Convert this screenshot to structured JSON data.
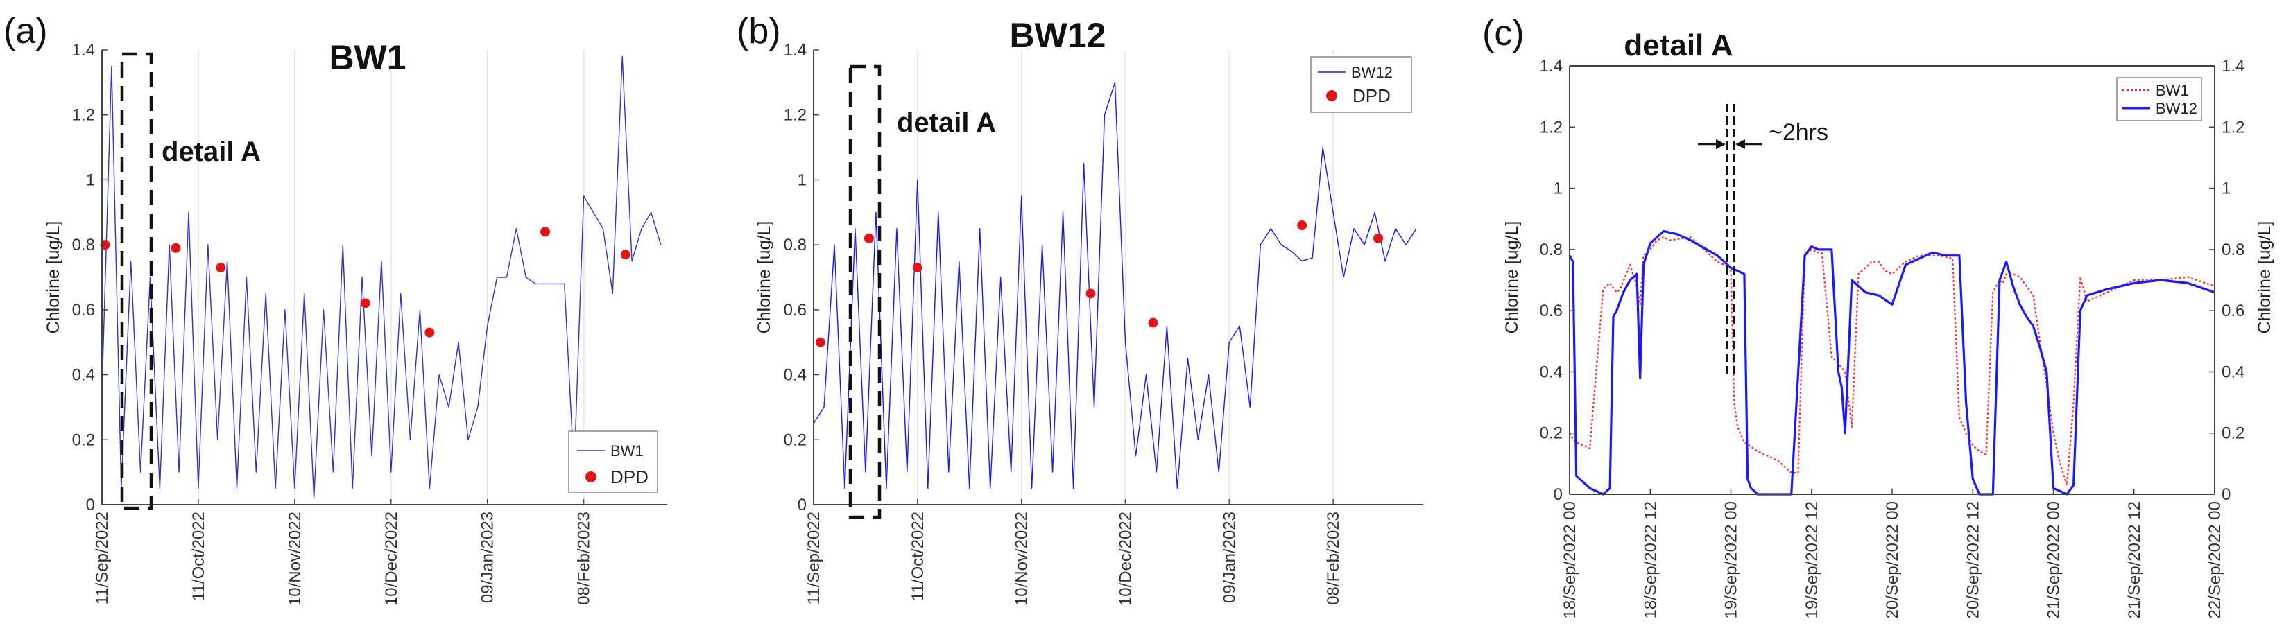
{
  "colors": {
    "bw1_blue": "#3333cc",
    "bw12_blue": "#1a1aff",
    "dpd_red": "#e01515",
    "bw1_dotted_red": "#ff2a2a",
    "axis": "#444444",
    "grid": "#e6e6e6"
  },
  "panels": {
    "a": {
      "label": "(a)",
      "title": "BW1",
      "ylabel": "Chlorine [ug/L]",
      "detail": "detail A",
      "legend": [
        "BW1",
        "DPD"
      ]
    },
    "b": {
      "label": "(b)",
      "title": "BW12",
      "ylabel": "Chlorine [ug/L]",
      "detail": "detail A",
      "legend": [
        "BW12",
        "DPD"
      ]
    },
    "c": {
      "label": "(c)",
      "title": "detail A",
      "ylabel_left": "Chlorine [ug/L]",
      "ylabel_right": "Chlorine [ug/L]",
      "annotation": "~2hrs",
      "legend": [
        "BW1",
        "BW12"
      ]
    }
  },
  "chart_data": [
    {
      "type": "line",
      "title": "BW1",
      "xlabel": "",
      "ylabel": "Chlorine [ug/L]",
      "xlim": [
        "2022-09-11",
        "2023-03-06"
      ],
      "ylim": [
        0,
        1.4
      ],
      "yticks": [
        "0",
        "0.2",
        "0.4",
        "0.6",
        "0.8",
        "1",
        "1.2",
        "1.4"
      ],
      "xticks": [
        "11/Sep/2022",
        "11/Oct/2022",
        "10/Nov/2022",
        "10/Dec/2022",
        "09/Jan/2023",
        "08/Feb/2023"
      ],
      "grid": "vertical",
      "legend_position": "bottom-right",
      "series": [
        {
          "name": "BW1",
          "style": "line",
          "x": [
            "2022-09-11",
            "2022-09-14",
            "2022-09-17",
            "2022-09-20",
            "2022-09-23",
            "2022-09-26",
            "2022-09-29",
            "2022-10-02",
            "2022-10-05",
            "2022-10-08",
            "2022-10-11",
            "2022-10-14",
            "2022-10-17",
            "2022-10-20",
            "2022-10-23",
            "2022-10-26",
            "2022-10-29",
            "2022-11-01",
            "2022-11-04",
            "2022-11-07",
            "2022-11-10",
            "2022-11-13",
            "2022-11-16",
            "2022-11-19",
            "2022-11-22",
            "2022-11-25",
            "2022-11-28",
            "2022-12-01",
            "2022-12-04",
            "2022-12-07",
            "2022-12-10",
            "2022-12-13",
            "2022-12-16",
            "2022-12-19",
            "2022-12-22",
            "2022-12-25",
            "2022-12-28",
            "2022-12-31",
            "2023-01-03",
            "2023-01-06",
            "2023-01-09",
            "2023-01-12",
            "2023-01-15",
            "2023-01-18",
            "2023-01-21",
            "2023-01-24",
            "2023-01-27",
            "2023-01-30",
            "2023-02-02",
            "2023-02-05",
            "2023-02-08",
            "2023-02-11",
            "2023-02-14",
            "2023-02-17",
            "2023-02-20",
            "2023-02-23",
            "2023-02-26",
            "2023-03-01",
            "2023-03-04"
          ],
          "values": [
            0.35,
            1.35,
            0.05,
            0.75,
            0.1,
            0.7,
            0.05,
            0.8,
            0.1,
            0.9,
            0.05,
            0.8,
            0.2,
            0.75,
            0.05,
            0.7,
            0.1,
            0.65,
            0.05,
            0.6,
            0.05,
            0.65,
            0.02,
            0.6,
            0.1,
            0.8,
            0.05,
            0.7,
            0.15,
            0.75,
            0.1,
            0.65,
            0.2,
            0.6,
            0.05,
            0.4,
            0.3,
            0.5,
            0.2,
            0.3,
            0.55,
            0.7,
            0.7,
            0.85,
            0.7,
            0.68,
            0.68,
            0.68,
            0.68,
            0.1,
            0.95,
            0.9,
            0.85,
            0.65,
            1.38,
            0.75,
            0.85,
            0.9,
            0.8
          ]
        },
        {
          "name": "DPD",
          "style": "markers",
          "x": [
            "2022-09-12",
            "2022-10-04",
            "2022-10-18",
            "2022-12-02",
            "2022-12-22",
            "2023-01-27",
            "2023-02-21"
          ],
          "values": [
            0.8,
            0.79,
            0.73,
            0.62,
            0.53,
            0.84,
            0.77
          ]
        }
      ],
      "annotations": [
        "detail A"
      ]
    },
    {
      "type": "line",
      "title": "BW12",
      "xlabel": "",
      "ylabel": "Chlorine [ug/L]",
      "xlim": [
        "2022-09-11",
        "2023-03-06"
      ],
      "ylim": [
        0,
        1.4
      ],
      "yticks": [
        "0",
        "0.2",
        "0.4",
        "0.6",
        "0.8",
        "1",
        "1.2",
        "1.4"
      ],
      "xticks": [
        "11/Sep/2022",
        "11/Oct/2022",
        "10/Nov/2022",
        "10/Dec/2022",
        "09/Jan/2023",
        "08/Feb/2023"
      ],
      "grid": "vertical",
      "legend_position": "top-right",
      "series": [
        {
          "name": "BW12",
          "style": "line",
          "x": [
            "2022-09-11",
            "2022-09-14",
            "2022-09-17",
            "2022-09-20",
            "2022-09-23",
            "2022-09-26",
            "2022-09-29",
            "2022-10-02",
            "2022-10-05",
            "2022-10-08",
            "2022-10-11",
            "2022-10-14",
            "2022-10-17",
            "2022-10-20",
            "2022-10-23",
            "2022-10-26",
            "2022-10-29",
            "2022-11-01",
            "2022-11-04",
            "2022-11-07",
            "2022-11-10",
            "2022-11-13",
            "2022-11-16",
            "2022-11-19",
            "2022-11-22",
            "2022-11-25",
            "2022-11-28",
            "2022-12-01",
            "2022-12-04",
            "2022-12-07",
            "2022-12-10",
            "2022-12-13",
            "2022-12-16",
            "2022-12-19",
            "2022-12-22",
            "2022-12-25",
            "2022-12-28",
            "2022-12-31",
            "2023-01-03",
            "2023-01-06",
            "2023-01-09",
            "2023-01-12",
            "2023-01-15",
            "2023-01-18",
            "2023-01-21",
            "2023-01-24",
            "2023-01-27",
            "2023-01-30",
            "2023-02-02",
            "2023-02-05",
            "2023-02-08",
            "2023-02-11",
            "2023-02-14",
            "2023-02-17",
            "2023-02-20",
            "2023-02-23",
            "2023-02-26",
            "2023-03-01",
            "2023-03-04"
          ],
          "values": [
            0.25,
            0.3,
            0.8,
            0.05,
            0.85,
            0.1,
            0.9,
            0.05,
            0.85,
            0.1,
            1.0,
            0.05,
            0.9,
            0.1,
            0.75,
            0.05,
            0.85,
            0.05,
            0.7,
            0.1,
            0.95,
            0.05,
            0.8,
            0.1,
            0.9,
            0.05,
            1.05,
            0.3,
            1.2,
            1.3,
            0.5,
            0.15,
            0.4,
            0.1,
            0.55,
            0.05,
            0.45,
            0.2,
            0.4,
            0.1,
            0.5,
            0.55,
            0.3,
            0.8,
            0.85,
            0.8,
            0.78,
            0.75,
            0.76,
            1.1,
            0.9,
            0.7,
            0.85,
            0.8,
            0.9,
            0.75,
            0.85,
            0.8,
            0.85
          ]
        },
        {
          "name": "DPD",
          "style": "markers",
          "x": [
            "2022-09-13",
            "2022-09-27",
            "2022-10-11",
            "2022-11-30",
            "2022-12-18",
            "2023-01-30",
            "2023-02-21"
          ],
          "values": [
            0.5,
            0.82,
            0.73,
            0.65,
            0.56,
            0.86,
            0.82
          ]
        }
      ],
      "annotations": [
        "detail A"
      ]
    },
    {
      "type": "line",
      "title": "detail A",
      "xlabel": "",
      "ylabel": "Chlorine [ug/L]",
      "xlim": [
        0,
        96
      ],
      "ylim": [
        0,
        1.4
      ],
      "yticks": [
        "0",
        "0.2",
        "0.4",
        "0.6",
        "0.8",
        "1",
        "1.2",
        "1.4"
      ],
      "xticks": [
        "18/Sep/2022 00",
        "18/Sep/2022 12",
        "19/Sep/2022 00",
        "19/Sep/2022 12",
        "20/Sep/2022 00",
        "20/Sep/2022 12",
        "21/Sep/2022 00",
        "21/Sep/2022 12",
        "22/Sep/2022 00"
      ],
      "x_unit": "hours after 18/Sep/2022 00",
      "legend_position": "top-right",
      "series": [
        {
          "name": "BW1",
          "style": "dotted",
          "x": [
            0,
            0.5,
            1,
            3,
            5,
            6,
            7,
            7.5,
            9,
            10,
            10.5,
            11,
            12,
            13,
            14,
            15,
            18,
            22,
            24,
            24.5,
            25,
            26,
            28,
            31,
            33,
            34,
            35,
            36,
            37,
            37.5,
            39,
            41,
            42,
            43,
            44,
            45,
            46,
            47,
            48,
            49,
            50,
            51,
            52,
            53,
            55,
            57,
            58,
            59,
            60,
            61,
            62,
            63,
            64,
            64.5,
            65,
            66,
            67,
            68,
            69,
            70,
            71,
            72,
            73,
            74,
            75,
            76,
            77,
            80,
            84,
            88,
            92,
            96
          ],
          "values": [
            0.2,
            0.18,
            0.17,
            0.15,
            0.67,
            0.69,
            0.66,
            0.67,
            0.75,
            0.68,
            0.62,
            0.78,
            0.8,
            0.83,
            0.84,
            0.83,
            0.84,
            0.76,
            0.74,
            0.3,
            0.22,
            0.17,
            0.14,
            0.11,
            0.07,
            0.07,
            0.78,
            0.8,
            0.79,
            0.8,
            0.45,
            0.4,
            0.22,
            0.72,
            0.74,
            0.76,
            0.76,
            0.73,
            0.72,
            0.74,
            0.76,
            0.77,
            0.78,
            0.78,
            0.78,
            0.77,
            0.25,
            0.2,
            0.16,
            0.14,
            0.13,
            0.66,
            0.7,
            0.69,
            0.72,
            0.72,
            0.71,
            0.68,
            0.65,
            0.5,
            0.36,
            0.2,
            0.1,
            0.03,
            0.3,
            0.71,
            0.63,
            0.66,
            0.7,
            0.7,
            0.71,
            0.68
          ]
        },
        {
          "name": "BW12",
          "style": "solid",
          "x": [
            0,
            0.5,
            1,
            3,
            5,
            6,
            6.5,
            7,
            8,
            9,
            10,
            10.5,
            11,
            12,
            14,
            16,
            18,
            22,
            24,
            26,
            26.5,
            27,
            28,
            30,
            32,
            33,
            35,
            36,
            37,
            39,
            40,
            40.5,
            41,
            42,
            43,
            44,
            46,
            48,
            50,
            52,
            54,
            56,
            58,
            59,
            60,
            61,
            62,
            63,
            64,
            65,
            66,
            67,
            68,
            69,
            70,
            71,
            72,
            74,
            75,
            76,
            77,
            80,
            84,
            88,
            92,
            96
          ],
          "values": [
            0.78,
            0.76,
            0.06,
            0.02,
            0.0,
            0.02,
            0.58,
            0.6,
            0.66,
            0.7,
            0.72,
            0.38,
            0.75,
            0.82,
            0.86,
            0.85,
            0.83,
            0.78,
            0.74,
            0.72,
            0.05,
            0.02,
            0.0,
            0.0,
            0.0,
            0.0,
            0.78,
            0.81,
            0.8,
            0.8,
            0.4,
            0.35,
            0.2,
            0.7,
            0.68,
            0.66,
            0.65,
            0.62,
            0.75,
            0.77,
            0.79,
            0.78,
            0.78,
            0.3,
            0.05,
            0.0,
            0.0,
            0.0,
            0.7,
            0.76,
            0.68,
            0.62,
            0.58,
            0.55,
            0.48,
            0.4,
            0.02,
            0.0,
            0.03,
            0.6,
            0.65,
            0.67,
            0.69,
            0.7,
            0.69,
            0.66
          ]
        }
      ],
      "annotations": [
        "~2hrs"
      ]
    }
  ]
}
